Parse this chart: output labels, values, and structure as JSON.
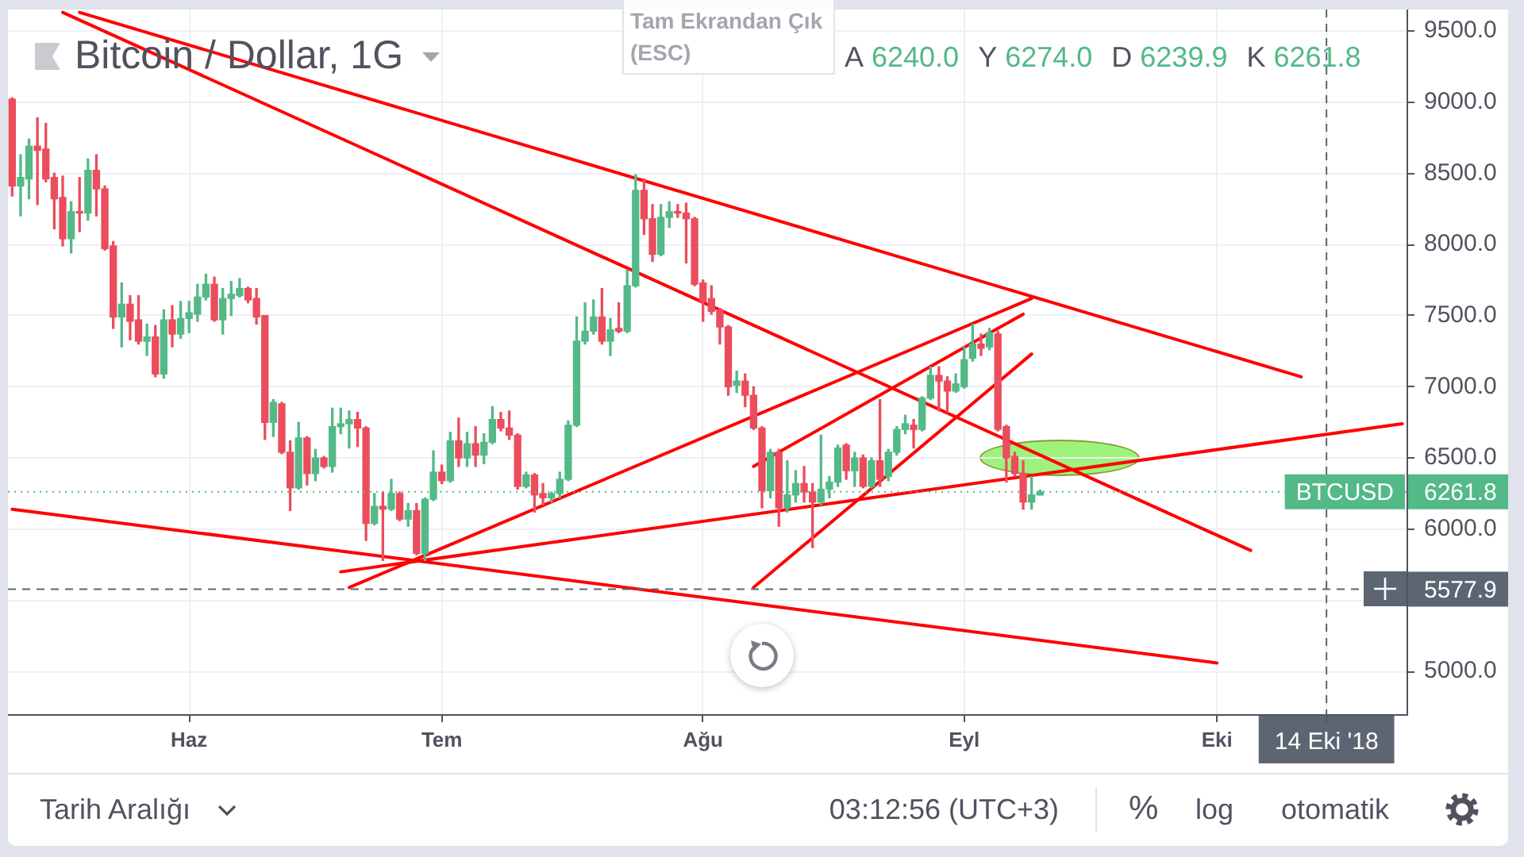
{
  "chart_data": {
    "type": "candlestick",
    "title": "Bitcoin / Dollar, 1G",
    "categories": [
      null,
      null,
      null,
      null,
      null,
      null,
      null,
      null,
      null,
      null,
      null,
      null,
      null,
      null,
      null,
      null,
      null,
      null,
      null,
      null,
      null,
      "Haz",
      null,
      null,
      null,
      null,
      null,
      null,
      null,
      null,
      null,
      null,
      null,
      null,
      null,
      null,
      null,
      null,
      null,
      null,
      null,
      null,
      null,
      null,
      null,
      null,
      null,
      null,
      null,
      null,
      null,
      "Tem",
      null,
      null,
      null,
      null,
      null,
      null,
      null,
      null,
      null,
      null,
      null,
      null,
      null,
      null,
      null,
      null,
      null,
      null,
      null,
      null,
      null,
      null,
      null,
      null,
      null,
      null,
      null,
      null,
      null,
      null,
      "Ağu",
      null,
      null,
      null,
      null,
      null,
      null,
      null,
      null,
      null,
      null,
      null,
      null,
      null,
      null,
      null,
      null,
      null,
      null,
      null,
      null,
      null,
      null,
      null,
      null,
      null,
      null,
      null,
      null,
      null,
      null,
      "Eyl",
      null,
      null,
      null,
      null,
      null,
      null,
      null,
      null,
      null,
      null,
      null,
      null,
      null,
      null,
      null,
      null,
      null,
      null,
      null,
      null,
      null,
      null,
      null,
      null,
      null,
      null,
      null,
      null,
      null,
      "Eki",
      null,
      null,
      null,
      null,
      null,
      null,
      null,
      null,
      null,
      null,
      null,
      null,
      "14 Eki '18",
      null,
      null,
      null,
      null,
      null,
      null,
      null,
      null,
      null
    ],
    "ohlc": [
      [
        9020,
        9030,
        8340,
        8410
      ],
      [
        8410,
        8630,
        8200,
        8470
      ],
      [
        8460,
        8740,
        8320,
        8690
      ],
      [
        8690,
        8890,
        8280,
        8660
      ],
      [
        8670,
        8850,
        8440,
        8460
      ],
      [
        8470,
        8500,
        8110,
        8320
      ],
      [
        8330,
        8480,
        7990,
        8040
      ],
      [
        8040,
        8300,
        7940,
        8230
      ],
      [
        8230,
        8470,
        8090,
        8220
      ],
      [
        8220,
        8600,
        8170,
        8520
      ],
      [
        8520,
        8630,
        8200,
        8390
      ],
      [
        8390,
        8410,
        7960,
        7970
      ],
      [
        7990,
        8020,
        7410,
        7490
      ],
      [
        7490,
        7730,
        7280,
        7580
      ],
      [
        7580,
        7640,
        7330,
        7460
      ],
      [
        7470,
        7640,
        7300,
        7320
      ],
      [
        7320,
        7440,
        7220,
        7350
      ],
      [
        7350,
        7430,
        7070,
        7090
      ],
      [
        7090,
        7540,
        7060,
        7470
      ],
      [
        7470,
        7570,
        7280,
        7370
      ],
      [
        7370,
        7600,
        7340,
        7480
      ],
      [
        7480,
        7600,
        7380,
        7520
      ],
      [
        7510,
        7720,
        7460,
        7630
      ],
      [
        7630,
        7790,
        7610,
        7720
      ],
      [
        7720,
        7770,
        7460,
        7470
      ],
      [
        7470,
        7690,
        7370,
        7620
      ],
      [
        7620,
        7740,
        7500,
        7650
      ],
      [
        7640,
        7760,
        7630,
        7690
      ],
      [
        7690,
        7700,
        7590,
        7610
      ],
      [
        7620,
        7690,
        7440,
        7490
      ],
      [
        7500,
        7500,
        6630,
        6750
      ],
      [
        6750,
        6910,
        6650,
        6890
      ],
      [
        6880,
        6890,
        6530,
        6540
      ],
      [
        6540,
        6620,
        6130,
        6290
      ],
      [
        6290,
        6750,
        6280,
        6640
      ],
      [
        6640,
        6650,
        6310,
        6390
      ],
      [
        6390,
        6560,
        6340,
        6500
      ],
      [
        6500,
        6510,
        6430,
        6440
      ],
      [
        6440,
        6850,
        6400,
        6720
      ],
      [
        6720,
        6850,
        6670,
        6740
      ],
      [
        6740,
        6830,
        6570,
        6770
      ],
      [
        6770,
        6820,
        6580,
        6710
      ],
      [
        6710,
        6720,
        5920,
        6040
      ],
      [
        6040,
        6250,
        6030,
        6160
      ],
      [
        6160,
        6260,
        5780,
        6140
      ],
      [
        6140,
        6350,
        6130,
        6250
      ],
      [
        6250,
        6260,
        6060,
        6070
      ],
      [
        6070,
        6180,
        6020,
        6130
      ],
      [
        6130,
        6180,
        5820,
        5830
      ],
      [
        5830,
        6220,
        5780,
        6210
      ],
      [
        6210,
        6550,
        6200,
        6400
      ],
      [
        6400,
        6450,
        6320,
        6340
      ],
      [
        6340,
        6680,
        6330,
        6620
      ],
      [
        6620,
        6780,
        6440,
        6500
      ],
      [
        6500,
        6680,
        6440,
        6600
      ],
      [
        6600,
        6720,
        6440,
        6520
      ],
      [
        6520,
        6670,
        6460,
        6610
      ],
      [
        6610,
        6860,
        6600,
        6770
      ],
      [
        6770,
        6820,
        6690,
        6710
      ],
      [
        6710,
        6830,
        6630,
        6660
      ],
      [
        6660,
        6670,
        6280,
        6300
      ],
      [
        6300,
        6400,
        6290,
        6380
      ],
      [
        6380,
        6390,
        6120,
        6240
      ],
      [
        6250,
        6320,
        6170,
        6220
      ],
      [
        6220,
        6260,
        6190,
        6250
      ],
      [
        6250,
        6400,
        6220,
        6350
      ],
      [
        6350,
        6760,
        6340,
        6730
      ],
      [
        6730,
        7490,
        6720,
        7320
      ],
      [
        7320,
        7590,
        7300,
        7390
      ],
      [
        7390,
        7610,
        7370,
        7490
      ],
      [
        7490,
        7690,
        7300,
        7320
      ],
      [
        7320,
        7480,
        7220,
        7400
      ],
      [
        7410,
        7590,
        7380,
        7390
      ],
      [
        7390,
        7820,
        7380,
        7710
      ],
      [
        7710,
        8490,
        7700,
        8380
      ],
      [
        8380,
        8460,
        8070,
        8180
      ],
      [
        8180,
        8280,
        7880,
        7930
      ],
      [
        7930,
        8280,
        7920,
        8190
      ],
      [
        8190,
        8300,
        8120,
        8230
      ],
      [
        8230,
        8280,
        8190,
        8220
      ],
      [
        8220,
        8290,
        7870,
        8180
      ],
      [
        8180,
        8190,
        7710,
        7720
      ],
      [
        7730,
        7750,
        7460,
        7600
      ],
      [
        7620,
        7710,
        7510,
        7530
      ],
      [
        7540,
        7550,
        7300,
        7420
      ],
      [
        7420,
        7430,
        6940,
        7000
      ],
      [
        7010,
        7110,
        6960,
        7040
      ],
      [
        7040,
        7090,
        6860,
        6940
      ],
      [
        6940,
        7000,
        6700,
        6710
      ],
      [
        6710,
        6720,
        6150,
        6270
      ],
      [
        6270,
        6560,
        6220,
        6540
      ],
      [
        6540,
        6560,
        6020,
        6150
      ],
      [
        6150,
        6480,
        6120,
        6240
      ],
      [
        6240,
        6410,
        6190,
        6320
      ],
      [
        6320,
        6440,
        6190,
        6260
      ],
      [
        6260,
        6320,
        5870,
        6190
      ],
      [
        6190,
        6660,
        6170,
        6280
      ],
      [
        6280,
        6370,
        6220,
        6330
      ],
      [
        6330,
        6590,
        6300,
        6570
      ],
      [
        6590,
        6600,
        6350,
        6410
      ],
      [
        6410,
        6540,
        6300,
        6500
      ],
      [
        6500,
        6520,
        6290,
        6300
      ],
      [
        6300,
        6500,
        6290,
        6480
      ],
      [
        6480,
        6910,
        6300,
        6350
      ],
      [
        6370,
        6560,
        6340,
        6540
      ],
      [
        6540,
        6720,
        6520,
        6700
      ],
      [
        6700,
        6800,
        6670,
        6740
      ],
      [
        6730,
        6770,
        6570,
        6700
      ],
      [
        6700,
        6930,
        6690,
        6920
      ],
      [
        6920,
        7140,
        6910,
        7080
      ],
      [
        7080,
        7140,
        6830,
        7040
      ],
      [
        7040,
        7070,
        6820,
        6970
      ],
      [
        6970,
        7090,
        6960,
        7020
      ],
      [
        7000,
        7280,
        6990,
        7190
      ],
      [
        7200,
        7440,
        7180,
        7300
      ],
      [
        7300,
        7370,
        7220,
        7270
      ],
      [
        7280,
        7410,
        7260,
        7380
      ],
      [
        7370,
        7390,
        6690,
        6700
      ],
      [
        6720,
        6730,
        6330,
        6500
      ],
      [
        6510,
        6540,
        6370,
        6390
      ],
      [
        6390,
        6480,
        6140,
        6190
      ],
      [
        6190,
        6370,
        6140,
        6240
      ],
      [
        6240,
        6274,
        6239.9,
        6261.8
      ],
      null,
      null,
      null,
      null,
      null,
      null,
      null,
      null,
      null,
      null,
      null,
      null,
      null,
      null,
      null,
      null,
      null,
      null,
      null,
      null,
      null,
      null,
      null,
      null,
      null,
      null,
      null,
      null,
      null,
      null,
      null,
      null,
      null,
      null,
      null,
      null,
      null,
      null,
      null,
      null,
      null,
      null,
      null
    ],
    "colors": [
      "#eb4d5c",
      "#53b987",
      "#53b987",
      "#eb4d5c",
      "#eb4d5c",
      "#eb4d5c",
      "#eb4d5c",
      "#53b987",
      "#eb4d5c",
      "#53b987",
      "#eb4d5c",
      "#eb4d5c",
      "#eb4d5c",
      "#53b987",
      "#eb4d5c",
      "#eb4d5c",
      "#53b987",
      "#eb4d5c",
      "#53b987",
      "#eb4d5c",
      "#53b987",
      "#53b987",
      "#53b987",
      "#53b987",
      "#eb4d5c",
      "#53b987",
      "#53b987",
      "#53b987",
      "#eb4d5c",
      "#eb4d5c",
      "#eb4d5c",
      "#53b987",
      "#eb4d5c",
      "#eb4d5c",
      "#53b987",
      "#eb4d5c",
      "#53b987",
      "#eb4d5c",
      "#53b987",
      "#53b987",
      "#53b987",
      "#eb4d5c",
      "#eb4d5c",
      "#53b987",
      "#eb4d5c",
      "#53b987",
      "#eb4d5c",
      "#53b987",
      "#eb4d5c",
      "#53b987",
      "#53b987",
      "#eb4d5c",
      "#53b987",
      "#eb4d5c",
      "#53b987",
      "#eb4d5c",
      "#53b987",
      "#53b987",
      "#eb4d5c",
      "#eb4d5c",
      "#eb4d5c",
      "#53b987",
      "#eb4d5c",
      "#eb4d5c",
      "#53b987",
      "#53b987",
      "#53b987",
      "#53b987",
      "#53b987",
      "#53b987",
      "#eb4d5c",
      "#53b987",
      "#eb4d5c",
      "#53b987",
      "#53b987",
      "#eb4d5c",
      "#eb4d5c",
      "#53b987",
      "#53b987",
      "#eb4d5c",
      "#eb4d5c",
      "#eb4d5c",
      "#eb4d5c",
      "#eb4d5c",
      "#eb4d5c",
      "#eb4d5c",
      "#53b987",
      "#eb4d5c",
      "#eb4d5c",
      "#eb4d5c",
      "#53b987",
      "#eb4d5c",
      "#53b987",
      "#53b987",
      "#eb4d5c",
      "#eb4d5c",
      "#53b987",
      "#53b987",
      "#53b987",
      "#eb4d5c",
      "#53b987",
      "#eb4d5c",
      "#53b987",
      "#eb4d5c",
      "#53b987",
      "#53b987",
      "#53b987",
      "#eb4d5c",
      "#53b987",
      "#53b987",
      "#eb4d5c",
      "#eb4d5c",
      "#53b987",
      "#53b987",
      "#53b987",
      "#eb4d5c",
      "#53b987",
      "#eb4d5c",
      "#eb4d5c",
      "#eb4d5c",
      "#eb4d5c",
      "#53b987",
      "#53b987",
      null,
      null,
      null,
      null,
      null,
      null,
      null,
      null,
      null,
      null,
      null,
      null,
      null,
      null,
      null,
      null,
      null,
      null,
      null,
      null,
      null,
      null,
      null,
      null,
      null,
      null,
      null,
      null,
      null,
      null,
      null,
      null,
      null,
      null,
      null,
      null,
      null,
      null,
      null,
      null,
      null,
      null,
      null
    ],
    "series": [
      {
        "type": "line",
        "color": "#ff0000",
        "values": [
          null,
          null,
          null,
          null,
          null,
          null,
          null,
          null,
          9630,
          null,
          null,
          null,
          null,
          null,
          null,
          null,
          null,
          null,
          null,
          null,
          null,
          null,
          null,
          null,
          null,
          null,
          null,
          null,
          null,
          null,
          null,
          null,
          null,
          null,
          null,
          null,
          null,
          null,
          null,
          null,
          null,
          null,
          null,
          null,
          null,
          null,
          null,
          null,
          null,
          null,
          null,
          null,
          null,
          null,
          null,
          null,
          null,
          null,
          null,
          null,
          null,
          null,
          null,
          null,
          null,
          null,
          null,
          null,
          null,
          null,
          null,
          null,
          null,
          null,
          null,
          null,
          null,
          null,
          null,
          null,
          null,
          null,
          null,
          null,
          null,
          null,
          null,
          null,
          null,
          null,
          null,
          null,
          null,
          null,
          null,
          null,
          null,
          null,
          null,
          null,
          null,
          null,
          null,
          null,
          null,
          null,
          null,
          null,
          null,
          null,
          null,
          null,
          null,
          null,
          null,
          null,
          null,
          null,
          null,
          null,
          null,
          null,
          null,
          null,
          null,
          null,
          null,
          null,
          null,
          null,
          null,
          null,
          null,
          null,
          null,
          null,
          null,
          null,
          null,
          null,
          null,
          null,
          null,
          null,
          null,
          null,
          null,
          null,
          null,
          null,
          null,
          null,
          null,
          7070,
          null,
          null,
          null,
          null,
          null,
          null,
          null,
          null,
          null,
          null,
          null,
          null
        ]
      },
      {
        "type": "line",
        "color": "#ff0000",
        "values": [
          null,
          null,
          null,
          null,
          null,
          null,
          9630,
          null,
          null,
          null,
          null,
          null,
          null,
          null,
          null,
          null,
          null,
          null,
          null,
          null,
          null,
          null,
          null,
          null,
          null,
          null,
          null,
          null,
          null,
          null,
          null,
          null,
          null,
          null,
          null,
          null,
          null,
          null,
          null,
          null,
          null,
          null,
          null,
          null,
          null,
          null,
          null,
          null,
          null,
          null,
          null,
          null,
          null,
          null,
          null,
          null,
          null,
          null,
          null,
          null,
          null,
          null,
          null,
          null,
          null,
          null,
          null,
          null,
          null,
          null,
          null,
          null,
          null,
          null,
          null,
          null,
          null,
          null,
          null,
          null,
          null,
          null,
          null,
          null,
          null,
          null,
          null,
          null,
          null,
          null,
          null,
          null,
          null,
          null,
          null,
          null,
          null,
          null,
          null,
          null,
          null,
          null,
          null,
          null,
          null,
          null,
          null,
          null,
          null,
          null,
          null,
          null,
          null,
          null,
          null,
          null,
          null,
          null,
          null,
          null,
          null,
          null,
          null,
          null,
          null,
          null,
          null,
          null,
          null,
          null,
          null,
          null,
          null,
          null,
          null,
          null,
          null,
          null,
          null,
          null,
          null,
          null,
          null,
          null,
          null,
          null,
          null,
          5850,
          null,
          null,
          null,
          null,
          null,
          null,
          null,
          null,
          null,
          null,
          null,
          null,
          null,
          null,
          null,
          null,
          null,
          null
        ]
      },
      {
        "type": "line",
        "color": "#ff0000",
        "values": [
          6140,
          null,
          null,
          null,
          null,
          null,
          null,
          null,
          null,
          null,
          null,
          null,
          null,
          null,
          null,
          null,
          null,
          null,
          null,
          null,
          null,
          null,
          null,
          null,
          null,
          null,
          null,
          null,
          null,
          null,
          null,
          null,
          null,
          null,
          null,
          null,
          null,
          null,
          null,
          null,
          null,
          null,
          null,
          null,
          null,
          null,
          null,
          null,
          null,
          null,
          null,
          null,
          null,
          null,
          null,
          null,
          null,
          null,
          null,
          null,
          null,
          null,
          null,
          null,
          null,
          null,
          null,
          null,
          null,
          null,
          null,
          null,
          null,
          null,
          null,
          null,
          null,
          null,
          null,
          null,
          null,
          null,
          null,
          null,
          null,
          null,
          null,
          null,
          null,
          null,
          null,
          null,
          null,
          null,
          null,
          null,
          null,
          null,
          null,
          null,
          null,
          null,
          null,
          null,
          null,
          null,
          null,
          null,
          null,
          null,
          null,
          null,
          null,
          null,
          null,
          null,
          null,
          null,
          null,
          null,
          null,
          null,
          null,
          null,
          null,
          null,
          null,
          null,
          null,
          null,
          null,
          null,
          null,
          null,
          null,
          null,
          null,
          null,
          null,
          null,
          null,
          null,
          null,
          5060,
          null,
          null,
          null,
          null,
          null,
          null,
          null,
          null,
          null,
          null,
          null,
          null,
          null,
          null,
          null,
          null,
          null,
          null,
          null,
          null,
          null,
          null
        ]
      },
      {
        "type": "line",
        "color": "#ff0000",
        "values": [
          null,
          null,
          null,
          null,
          null,
          null,
          null,
          null,
          null,
          null,
          null,
          null,
          null,
          null,
          null,
          null,
          null,
          null,
          null,
          null,
          null,
          null,
          null,
          null,
          null,
          null,
          null,
          null,
          null,
          null,
          null,
          null,
          null,
          null,
          null,
          null,
          null,
          null,
          null,
          5700,
          null,
          null,
          null,
          null,
          null,
          null,
          null,
          null,
          null,
          null,
          null,
          null,
          null,
          null,
          null,
          null,
          null,
          null,
          null,
          null,
          null,
          null,
          null,
          null,
          null,
          null,
          null,
          null,
          null,
          null,
          null,
          null,
          null,
          null,
          null,
          null,
          null,
          null,
          null,
          null,
          null,
          null,
          null,
          null,
          null,
          null,
          null,
          null,
          null,
          null,
          null,
          null,
          null,
          null,
          null,
          null,
          null,
          null,
          null,
          null,
          null,
          null,
          null,
          null,
          null,
          null,
          null,
          null,
          null,
          null,
          null,
          null,
          null,
          null,
          null,
          null,
          null,
          null,
          null,
          null,
          null,
          null,
          null,
          null,
          null,
          null,
          null,
          null,
          null,
          null,
          null,
          null,
          null,
          null,
          null,
          null,
          null,
          null,
          null,
          null,
          null,
          null,
          null,
          null,
          null,
          null,
          null,
          null,
          null,
          null,
          null,
          null,
          null,
          null,
          null,
          null,
          null,
          null,
          null,
          null,
          null,
          null,
          null,
          null,
          null,
          6740
        ]
      },
      {
        "type": "line",
        "color": "#ff0000",
        "values": [
          null,
          null,
          null,
          null,
          null,
          null,
          null,
          null,
          null,
          null,
          null,
          null,
          null,
          null,
          null,
          null,
          null,
          null,
          null,
          null,
          null,
          null,
          null,
          null,
          null,
          null,
          null,
          null,
          null,
          null,
          null,
          null,
          null,
          null,
          null,
          null,
          null,
          null,
          null,
          null,
          5590,
          null,
          null,
          null,
          null,
          null,
          null,
          null,
          null,
          null,
          null,
          null,
          null,
          null,
          null,
          null,
          null,
          null,
          null,
          null,
          null,
          null,
          null,
          null,
          null,
          null,
          null,
          null,
          null,
          null,
          null,
          null,
          null,
          null,
          null,
          null,
          null,
          null,
          null,
          null,
          null,
          null,
          null,
          null,
          null,
          null,
          null,
          null,
          null,
          null,
          null,
          null,
          null,
          null,
          null,
          null,
          null,
          null,
          null,
          null,
          null,
          null,
          null,
          null,
          null,
          null,
          null,
          null,
          null,
          null,
          null,
          null,
          null,
          null,
          null,
          null,
          null,
          null,
          null,
          null,
          null,
          7620,
          null,
          null,
          null,
          null,
          null,
          null,
          null,
          null,
          null,
          null,
          null,
          null,
          null,
          null,
          null,
          null,
          null,
          null,
          null,
          null,
          null,
          null,
          null,
          null,
          null,
          null,
          null,
          null,
          null,
          null,
          null,
          null,
          null,
          null,
          null,
          null,
          null,
          null,
          null,
          null,
          null,
          null,
          null,
          null
        ]
      },
      {
        "type": "line",
        "color": "#ff0000",
        "values": [
          null,
          null,
          null,
          null,
          null,
          null,
          null,
          null,
          null,
          null,
          null,
          null,
          null,
          null,
          null,
          null,
          null,
          null,
          null,
          null,
          null,
          null,
          null,
          null,
          null,
          null,
          null,
          null,
          null,
          null,
          null,
          null,
          null,
          null,
          null,
          null,
          null,
          null,
          null,
          null,
          null,
          null,
          null,
          null,
          null,
          null,
          null,
          null,
          null,
          null,
          null,
          null,
          null,
          null,
          null,
          null,
          null,
          null,
          null,
          null,
          null,
          null,
          null,
          null,
          null,
          null,
          null,
          null,
          null,
          null,
          null,
          null,
          null,
          null,
          null,
          null,
          null,
          null,
          null,
          null,
          null,
          null,
          null,
          null,
          null,
          null,
          null,
          null,
          5590,
          null,
          null,
          null,
          null,
          null,
          null,
          null,
          null,
          null,
          null,
          null,
          null,
          null,
          null,
          null,
          null,
          null,
          null,
          null,
          null,
          null,
          null,
          null,
          null,
          null,
          null,
          null,
          null,
          null,
          null,
          null,
          null,
          7230,
          null,
          null,
          null,
          null,
          null,
          null,
          null,
          null,
          null,
          null,
          null,
          null,
          null,
          null,
          null,
          null,
          null,
          null,
          null,
          null,
          null,
          null,
          null,
          null,
          null,
          null,
          null,
          null,
          null,
          null,
          null,
          null,
          null,
          null,
          null,
          null,
          null,
          null,
          null,
          null,
          null,
          null,
          null,
          null
        ]
      },
      {
        "type": "line",
        "color": "#ff0000",
        "values": [
          null,
          null,
          null,
          null,
          null,
          null,
          null,
          null,
          null,
          null,
          null,
          null,
          null,
          null,
          null,
          null,
          null,
          null,
          null,
          null,
          null,
          null,
          null,
          null,
          null,
          null,
          null,
          null,
          null,
          null,
          null,
          null,
          null,
          null,
          null,
          null,
          null,
          null,
          null,
          null,
          null,
          null,
          null,
          null,
          null,
          null,
          null,
          null,
          null,
          null,
          null,
          null,
          null,
          null,
          null,
          null,
          null,
          null,
          null,
          null,
          null,
          null,
          null,
          null,
          null,
          null,
          null,
          null,
          null,
          null,
          null,
          null,
          null,
          null,
          null,
          null,
          null,
          null,
          null,
          null,
          null,
          null,
          null,
          null,
          null,
          null,
          null,
          null,
          6440,
          null,
          null,
          null,
          null,
          null,
          null,
          null,
          null,
          null,
          null,
          null,
          null,
          null,
          null,
          null,
          null,
          null,
          null,
          null,
          null,
          null,
          null,
          null,
          null,
          null,
          null,
          null,
          null,
          null,
          null,
          null,
          7510,
          null,
          null,
          null,
          null,
          null,
          null,
          null,
          null,
          null,
          null,
          null,
          null,
          null,
          null,
          null,
          null,
          null,
          null,
          null,
          null,
          null,
          null,
          null,
          null,
          null,
          null,
          null,
          null,
          null,
          null,
          null,
          null,
          null,
          null,
          null,
          null,
          null,
          null,
          null,
          null,
          null,
          null,
          null,
          null,
          null
        ]
      }
    ],
    "ylim": [
      4700,
      9650
    ],
    "yticks": [
      {
        "value": 5000,
        "label": "5000.0"
      },
      {
        "value": 5500,
        "label": null
      },
      {
        "value": 6000,
        "label": "6000.0"
      },
      {
        "value": 6500,
        "label": "6500.0"
      },
      {
        "value": 7000,
        "label": "7000.0"
      },
      {
        "value": 7500,
        "label": "7500.0"
      },
      {
        "value": 8000,
        "label": "8000.0"
      },
      {
        "value": 8500,
        "label": "8500.0"
      },
      {
        "value": 9000,
        "label": "9000.0"
      },
      {
        "value": 9500,
        "label": "9500.0"
      }
    ],
    "grid": true,
    "ref_lines": [
      {
        "axis": "y",
        "value": 6261.8,
        "label": "6261.8",
        "color": "#53b987",
        "line_style": "dotted"
      },
      {
        "axis": "y",
        "value": 5577.9,
        "label": "5577.9",
        "color": "#5d6573",
        "line_style": "dashed"
      },
      {
        "axis": "x",
        "value": "14 Eki '18",
        "color": "#5d6573",
        "line_style": "dashed"
      }
    ],
    "annotations": [
      "Tam Ekrandan Çık (ESC)",
      "A 6240.0 Y 6274.0 D 6239.9 K 6261.8",
      "Tarih Aralığı",
      "03:12:56 (UTC+3)",
      "%",
      "log",
      "otomatik",
      {
        "text": "BTCUSD",
        "y": 6261.8
      }
    ]
  }
}
